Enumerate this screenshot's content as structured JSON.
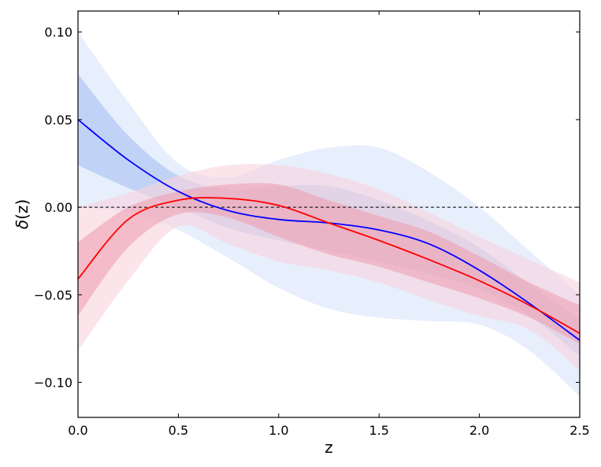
{
  "chart_data": {
    "type": "line",
    "xlabel": "z",
    "ylabel_symbol": "δ",
    "ylabel_arg": "(z)",
    "xlim": [
      0.0,
      2.5
    ],
    "ylim": [
      -0.12,
      0.112
    ],
    "xticks": [
      0.0,
      0.5,
      1.0,
      1.5,
      2.0,
      2.5
    ],
    "xtick_labels": [
      "0.0",
      "0.5",
      "1.0",
      "1.5",
      "2.0",
      "2.5"
    ],
    "yticks": [
      0.1,
      0.05,
      0.0,
      -0.05,
      -0.1
    ],
    "ytick_labels": [
      "0.10",
      "0.05",
      "0.00",
      "−0.05",
      "−0.10"
    ],
    "grid": false,
    "legend": "none",
    "reference_line": {
      "y": 0.0,
      "style": "dashed",
      "color": "#000000"
    },
    "x": [
      0.0,
      0.25,
      0.5,
      0.75,
      1.0,
      1.25,
      1.5,
      1.75,
      2.0,
      2.25,
      2.5
    ],
    "series": [
      {
        "color": "#0000ff",
        "line_color": "#0000ff",
        "band_inner_color": "#b9cdf5",
        "band_outer_color": "#e3ebfb",
        "band_opacity": 0.85,
        "mean": [
          0.05,
          0.027,
          0.009,
          -0.002,
          -0.007,
          -0.009,
          -0.013,
          -0.021,
          -0.036,
          -0.055,
          -0.076
        ],
        "inner_low": [
          0.024,
          0.011,
          0.0,
          -0.012,
          -0.019,
          -0.025,
          -0.031,
          -0.038,
          -0.047,
          -0.062,
          -0.085
        ],
        "inner_high": [
          0.076,
          0.041,
          0.018,
          0.01,
          0.012,
          0.012,
          0.004,
          -0.008,
          -0.023,
          -0.044,
          -0.064
        ],
        "outer_low": [
          0.0,
          -0.003,
          -0.013,
          -0.029,
          -0.046,
          -0.058,
          -0.063,
          -0.065,
          -0.067,
          -0.082,
          -0.108
        ],
        "outer_high": [
          0.1,
          0.06,
          0.025,
          0.017,
          0.027,
          0.034,
          0.034,
          0.02,
          0.0,
          -0.025,
          -0.05
        ]
      },
      {
        "color": "#ff0000",
        "line_color": "#ff0000",
        "band_inner_color": "#f0a0b3",
        "band_outer_color": "#f9d3dd",
        "band_opacity": 0.6,
        "mean": [
          -0.041,
          -0.007,
          0.004,
          0.005,
          0.001,
          -0.009,
          -0.019,
          -0.03,
          -0.042,
          -0.056,
          -0.072
        ],
        "inner_low": [
          -0.062,
          -0.023,
          -0.004,
          -0.006,
          -0.017,
          -0.027,
          -0.034,
          -0.043,
          -0.052,
          -0.063,
          -0.078
        ],
        "inner_high": [
          -0.02,
          0.0,
          0.009,
          0.013,
          0.013,
          0.004,
          -0.005,
          -0.014,
          -0.028,
          -0.043,
          -0.056
        ],
        "outer_low": [
          -0.082,
          -0.042,
          -0.011,
          -0.021,
          -0.031,
          -0.036,
          -0.043,
          -0.053,
          -0.062,
          -0.07,
          -0.093
        ],
        "outer_high": [
          0.0,
          0.008,
          0.018,
          0.024,
          0.024,
          0.019,
          0.01,
          -0.003,
          -0.017,
          -0.03,
          -0.043
        ]
      }
    ]
  }
}
